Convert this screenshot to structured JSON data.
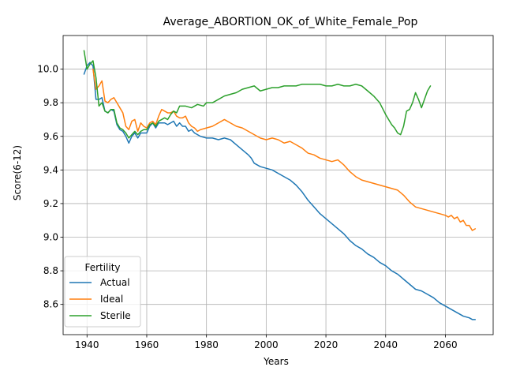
{
  "chart_data": {
    "type": "line",
    "title": "Average_ABORTION_OK_of_White_Female_Pop",
    "xlabel": "Years",
    "ylabel": "Score(6-12)",
    "xlim": [
      1932,
      2076
    ],
    "ylim": [
      8.42,
      10.2
    ],
    "xticks": [
      1940,
      1960,
      1980,
      2000,
      2020,
      2040,
      2060
    ],
    "yticks": [
      8.6,
      8.8,
      9.0,
      9.2,
      9.4,
      9.6,
      9.8,
      10.0
    ],
    "grid": true,
    "legend": {
      "title": "Fertility",
      "position": "lower-left"
    },
    "series": [
      {
        "name": "Actual",
        "color": "#1f77b4",
        "points": [
          [
            1939,
            9.97
          ],
          [
            1940,
            10.02
          ],
          [
            1941,
            10.04
          ],
          [
            1942,
            10.02
          ],
          [
            1943,
            9.82
          ],
          [
            1944,
            9.82
          ],
          [
            1945,
            9.83
          ],
          [
            1946,
            9.75
          ],
          [
            1947,
            9.74
          ],
          [
            1948,
            9.76
          ],
          [
            1949,
            9.75
          ],
          [
            1950,
            9.67
          ],
          [
            1951,
            9.64
          ],
          [
            1952,
            9.63
          ],
          [
            1953,
            9.6
          ],
          [
            1954,
            9.56
          ],
          [
            1955,
            9.6
          ],
          [
            1956,
            9.62
          ],
          [
            1957,
            9.59
          ],
          [
            1958,
            9.62
          ],
          [
            1959,
            9.62
          ],
          [
            1960,
            9.62
          ],
          [
            1961,
            9.66
          ],
          [
            1962,
            9.68
          ],
          [
            1963,
            9.65
          ],
          [
            1964,
            9.68
          ],
          [
            1965,
            9.68
          ],
          [
            1966,
            9.68
          ],
          [
            1967,
            9.67
          ],
          [
            1968,
            9.68
          ],
          [
            1969,
            9.69
          ],
          [
            1970,
            9.66
          ],
          [
            1971,
            9.68
          ],
          [
            1972,
            9.66
          ],
          [
            1973,
            9.66
          ],
          [
            1974,
            9.63
          ],
          [
            1975,
            9.64
          ],
          [
            1976,
            9.62
          ],
          [
            1977,
            9.61
          ],
          [
            1978,
            9.6
          ],
          [
            1980,
            9.59
          ],
          [
            1982,
            9.59
          ],
          [
            1984,
            9.58
          ],
          [
            1986,
            9.59
          ],
          [
            1988,
            9.58
          ],
          [
            1990,
            9.55
          ],
          [
            1992,
            9.52
          ],
          [
            1994,
            9.49
          ],
          [
            1995,
            9.47
          ],
          [
            1996,
            9.44
          ],
          [
            1998,
            9.42
          ],
          [
            2000,
            9.41
          ],
          [
            2002,
            9.4
          ],
          [
            2004,
            9.38
          ],
          [
            2006,
            9.36
          ],
          [
            2008,
            9.34
          ],
          [
            2010,
            9.31
          ],
          [
            2012,
            9.27
          ],
          [
            2014,
            9.22
          ],
          [
            2016,
            9.18
          ],
          [
            2018,
            9.14
          ],
          [
            2020,
            9.11
          ],
          [
            2022,
            9.08
          ],
          [
            2024,
            9.05
          ],
          [
            2026,
            9.02
          ],
          [
            2028,
            8.98
          ],
          [
            2030,
            8.95
          ],
          [
            2032,
            8.93
          ],
          [
            2034,
            8.9
          ],
          [
            2036,
            8.88
          ],
          [
            2038,
            8.85
          ],
          [
            2040,
            8.83
          ],
          [
            2042,
            8.8
          ],
          [
            2044,
            8.78
          ],
          [
            2046,
            8.75
          ],
          [
            2048,
            8.72
          ],
          [
            2050,
            8.69
          ],
          [
            2052,
            8.68
          ],
          [
            2054,
            8.66
          ],
          [
            2056,
            8.64
          ],
          [
            2058,
            8.61
          ],
          [
            2060,
            8.59
          ],
          [
            2062,
            8.57
          ],
          [
            2064,
            8.55
          ],
          [
            2066,
            8.53
          ],
          [
            2068,
            8.52
          ],
          [
            2069,
            8.51
          ],
          [
            2070,
            8.51
          ]
        ]
      },
      {
        "name": "Ideal",
        "color": "#ff7f0e",
        "points": [
          [
            1942,
            10.0
          ],
          [
            1943,
            9.88
          ],
          [
            1944,
            9.9
          ],
          [
            1945,
            9.93
          ],
          [
            1946,
            9.81
          ],
          [
            1947,
            9.8
          ],
          [
            1948,
            9.82
          ],
          [
            1949,
            9.83
          ],
          [
            1950,
            9.8
          ],
          [
            1951,
            9.77
          ],
          [
            1952,
            9.74
          ],
          [
            1953,
            9.66
          ],
          [
            1954,
            9.64
          ],
          [
            1955,
            9.69
          ],
          [
            1956,
            9.7
          ],
          [
            1957,
            9.63
          ],
          [
            1958,
            9.68
          ],
          [
            1959,
            9.66
          ],
          [
            1960,
            9.65
          ],
          [
            1961,
            9.68
          ],
          [
            1962,
            9.69
          ],
          [
            1963,
            9.67
          ],
          [
            1964,
            9.72
          ],
          [
            1965,
            9.76
          ],
          [
            1966,
            9.75
          ],
          [
            1967,
            9.74
          ],
          [
            1968,
            9.74
          ],
          [
            1969,
            9.75
          ],
          [
            1970,
            9.72
          ],
          [
            1971,
            9.71
          ],
          [
            1972,
            9.71
          ],
          [
            1973,
            9.72
          ],
          [
            1974,
            9.68
          ],
          [
            1975,
            9.66
          ],
          [
            1976,
            9.65
          ],
          [
            1977,
            9.63
          ],
          [
            1978,
            9.64
          ],
          [
            1980,
            9.65
          ],
          [
            1982,
            9.66
          ],
          [
            1984,
            9.68
          ],
          [
            1986,
            9.7
          ],
          [
            1988,
            9.68
          ],
          [
            1990,
            9.66
          ],
          [
            1992,
            9.65
          ],
          [
            1994,
            9.63
          ],
          [
            1996,
            9.61
          ],
          [
            1998,
            9.59
          ],
          [
            2000,
            9.58
          ],
          [
            2002,
            9.59
          ],
          [
            2004,
            9.58
          ],
          [
            2006,
            9.56
          ],
          [
            2008,
            9.57
          ],
          [
            2010,
            9.55
          ],
          [
            2012,
            9.53
          ],
          [
            2014,
            9.5
          ],
          [
            2016,
            9.49
          ],
          [
            2018,
            9.47
          ],
          [
            2020,
            9.46
          ],
          [
            2022,
            9.45
          ],
          [
            2024,
            9.46
          ],
          [
            2026,
            9.43
          ],
          [
            2028,
            9.39
          ],
          [
            2030,
            9.36
          ],
          [
            2032,
            9.34
          ],
          [
            2034,
            9.33
          ],
          [
            2036,
            9.32
          ],
          [
            2038,
            9.31
          ],
          [
            2040,
            9.3
          ],
          [
            2042,
            9.29
          ],
          [
            2044,
            9.28
          ],
          [
            2046,
            9.25
          ],
          [
            2048,
            9.21
          ],
          [
            2050,
            9.18
          ],
          [
            2052,
            9.17
          ],
          [
            2054,
            9.16
          ],
          [
            2056,
            9.15
          ],
          [
            2058,
            9.14
          ],
          [
            2060,
            9.13
          ],
          [
            2061,
            9.12
          ],
          [
            2062,
            9.13
          ],
          [
            2063,
            9.11
          ],
          [
            2064,
            9.12
          ],
          [
            2065,
            9.09
          ],
          [
            2066,
            9.1
          ],
          [
            2067,
            9.07
          ],
          [
            2068,
            9.07
          ],
          [
            2069,
            9.04
          ],
          [
            2070,
            9.05
          ]
        ]
      },
      {
        "name": "Sterile",
        "color": "#2ca02c",
        "points": [
          [
            1939,
            10.11
          ],
          [
            1940,
            10.0
          ],
          [
            1941,
            10.03
          ],
          [
            1942,
            10.05
          ],
          [
            1943,
            9.95
          ],
          [
            1944,
            9.78
          ],
          [
            1945,
            9.8
          ],
          [
            1946,
            9.75
          ],
          [
            1947,
            9.74
          ],
          [
            1948,
            9.76
          ],
          [
            1949,
            9.76
          ],
          [
            1950,
            9.68
          ],
          [
            1951,
            9.65
          ],
          [
            1952,
            9.64
          ],
          [
            1953,
            9.62
          ],
          [
            1954,
            9.59
          ],
          [
            1955,
            9.61
          ],
          [
            1956,
            9.63
          ],
          [
            1957,
            9.61
          ],
          [
            1958,
            9.63
          ],
          [
            1959,
            9.64
          ],
          [
            1960,
            9.64
          ],
          [
            1961,
            9.67
          ],
          [
            1962,
            9.68
          ],
          [
            1963,
            9.66
          ],
          [
            1964,
            9.69
          ],
          [
            1965,
            9.7
          ],
          [
            1966,
            9.71
          ],
          [
            1967,
            9.7
          ],
          [
            1968,
            9.73
          ],
          [
            1969,
            9.75
          ],
          [
            1970,
            9.74
          ],
          [
            1971,
            9.78
          ],
          [
            1972,
            9.78
          ],
          [
            1973,
            9.78
          ],
          [
            1975,
            9.77
          ],
          [
            1977,
            9.79
          ],
          [
            1979,
            9.78
          ],
          [
            1980,
            9.8
          ],
          [
            1982,
            9.8
          ],
          [
            1984,
            9.82
          ],
          [
            1986,
            9.84
          ],
          [
            1988,
            9.85
          ],
          [
            1990,
            9.86
          ],
          [
            1992,
            9.88
          ],
          [
            1994,
            9.89
          ],
          [
            1996,
            9.9
          ],
          [
            1998,
            9.87
          ],
          [
            2000,
            9.88
          ],
          [
            2002,
            9.89
          ],
          [
            2004,
            9.89
          ],
          [
            2006,
            9.9
          ],
          [
            2008,
            9.9
          ],
          [
            2010,
            9.9
          ],
          [
            2012,
            9.91
          ],
          [
            2014,
            9.91
          ],
          [
            2016,
            9.91
          ],
          [
            2018,
            9.91
          ],
          [
            2020,
            9.9
          ],
          [
            2022,
            9.9
          ],
          [
            2024,
            9.91
          ],
          [
            2026,
            9.9
          ],
          [
            2028,
            9.9
          ],
          [
            2030,
            9.91
          ],
          [
            2032,
            9.9
          ],
          [
            2034,
            9.87
          ],
          [
            2036,
            9.84
          ],
          [
            2038,
            9.8
          ],
          [
            2040,
            9.73
          ],
          [
            2041,
            9.7
          ],
          [
            2042,
            9.67
          ],
          [
            2043,
            9.65
          ],
          [
            2044,
            9.62
          ],
          [
            2045,
            9.61
          ],
          [
            2046,
            9.66
          ],
          [
            2047,
            9.75
          ],
          [
            2048,
            9.76
          ],
          [
            2049,
            9.8
          ],
          [
            2050,
            9.86
          ],
          [
            2051,
            9.82
          ],
          [
            2052,
            9.77
          ],
          [
            2053,
            9.82
          ],
          [
            2054,
            9.87
          ],
          [
            2055,
            9.9
          ]
        ]
      }
    ]
  }
}
